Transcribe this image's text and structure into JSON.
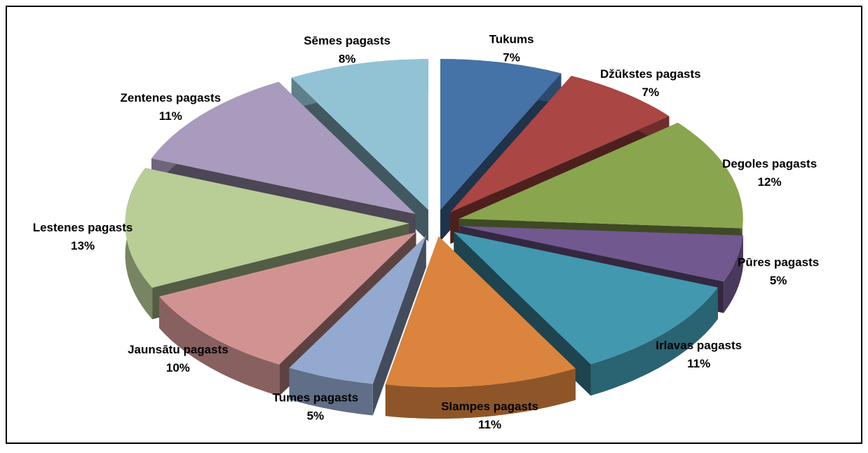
{
  "chart_data": {
    "type": "pie",
    "categories": [
      "Tukums",
      "Džūkstes pagasts",
      "Degoles pagasts",
      "Pūres pagasts",
      "Irlavas pagasts",
      "Slampes pagasts",
      "Tumes pagasts",
      "Jaunsātu pagasts",
      "Lestenes pagasts",
      "Zentenes pagasts",
      "Sēmes pagasts"
    ],
    "values": [
      7,
      7,
      12,
      5,
      11,
      11,
      5,
      10,
      13,
      11,
      8
    ],
    "value_labels": [
      "7%",
      "7%",
      "12%",
      "5%",
      "11%",
      "11%",
      "5%",
      "10%",
      "13%",
      "11%",
      "8%"
    ],
    "colors": [
      "#4572a7",
      "#aa4643",
      "#89a54e",
      "#71588f",
      "#4198af",
      "#db843d",
      "#93a9cf",
      "#d19392",
      "#b9cd96",
      "#a99bbd",
      "#92c3d5"
    ]
  }
}
